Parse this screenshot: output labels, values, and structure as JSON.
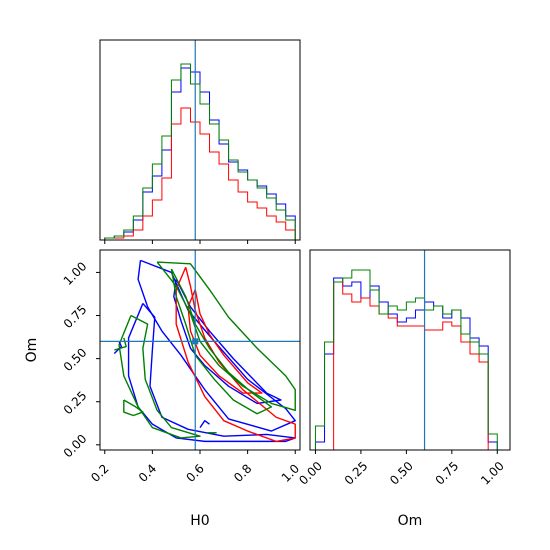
{
  "chart_data": {
    "type": "corner",
    "parameters": [
      "H0",
      "Om"
    ],
    "truth": {
      "H0": 0.58,
      "Om": 0.6
    },
    "colors": {
      "truth": "#1f77b4",
      "series": [
        "#0000ff",
        "#ff0000",
        "#008000"
      ]
    },
    "panels": [
      {
        "type": "histogram",
        "parameter": "H0",
        "xlim": [
          0.18,
          1.02
        ],
        "ylim": [
          0,
          1.0
        ],
        "series": [
          {
            "color": "#0000ff",
            "bin_edges": [
              0.2,
              0.24,
              0.28,
              0.32,
              0.36,
              0.4,
              0.44,
              0.48,
              0.52,
              0.56,
              0.6,
              0.64,
              0.68,
              0.72,
              0.76,
              0.8,
              0.84,
              0.88,
              0.92,
              0.96,
              1.0
            ],
            "values": [
              0.01,
              0.02,
              0.04,
              0.1,
              0.24,
              0.32,
              0.45,
              0.74,
              0.86,
              0.84,
              0.74,
              0.6,
              0.48,
              0.39,
              0.35,
              0.3,
              0.27,
              0.23,
              0.18,
              0.12
            ]
          },
          {
            "color": "#ff0000",
            "bin_edges": [
              0.2,
              0.24,
              0.28,
              0.32,
              0.36,
              0.4,
              0.44,
              0.48,
              0.52,
              0.56,
              0.6,
              0.64,
              0.68,
              0.72,
              0.76,
              0.8,
              0.84,
              0.88,
              0.92,
              0.96,
              1.0
            ],
            "values": [
              0.01,
              0.01,
              0.02,
              0.05,
              0.12,
              0.2,
              0.31,
              0.58,
              0.66,
              0.59,
              0.53,
              0.44,
              0.38,
              0.3,
              0.24,
              0.19,
              0.16,
              0.12,
              0.09,
              0.05
            ]
          },
          {
            "color": "#008000",
            "bin_edges": [
              0.2,
              0.24,
              0.28,
              0.32,
              0.36,
              0.4,
              0.44,
              0.48,
              0.52,
              0.56,
              0.6,
              0.64,
              0.68,
              0.72,
              0.76,
              0.8,
              0.84,
              0.88,
              0.92,
              0.96,
              1.0
            ],
            "values": [
              0.01,
              0.02,
              0.05,
              0.12,
              0.26,
              0.38,
              0.52,
              0.8,
              0.88,
              0.78,
              0.68,
              0.58,
              0.5,
              0.4,
              0.34,
              0.3,
              0.26,
              0.21,
              0.15,
              0.1
            ]
          }
        ]
      },
      {
        "type": "contour",
        "xparam": "H0",
        "yparam": "Om",
        "xlim": [
          0.18,
          1.02
        ],
        "ylim": [
          -0.03,
          1.13
        ],
        "xticks": [
          "0.2",
          "0.4",
          "0.6",
          "0.8",
          "1.0"
        ],
        "yticks": [
          "0.00",
          "0.25",
          "0.50",
          "0.75",
          "1.00"
        ],
        "contours": [
          {
            "color": "#0000ff",
            "points": [
              [
                0.35,
                1.07
              ],
              [
                0.48,
                1.0
              ],
              [
                0.55,
                0.78
              ],
              [
                0.66,
                0.6
              ],
              [
                0.8,
                0.38
              ],
              [
                0.96,
                0.21
              ],
              [
                1.0,
                0.14
              ],
              [
                0.9,
                0.08
              ],
              [
                0.72,
                0.15
              ],
              [
                0.62,
                0.32
              ],
              [
                0.52,
                0.52
              ],
              [
                0.44,
                0.66
              ],
              [
                0.38,
                0.8
              ],
              [
                0.34,
                0.96
              ],
              [
                0.35,
                1.07
              ]
            ]
          },
          {
            "color": "#0000ff",
            "points": [
              [
                0.5,
                0.96
              ],
              [
                0.56,
                0.8
              ],
              [
                0.64,
                0.66
              ],
              [
                0.74,
                0.5
              ],
              [
                0.88,
                0.3
              ],
              [
                0.94,
                0.26
              ],
              [
                0.84,
                0.24
              ],
              [
                0.72,
                0.34
              ],
              [
                0.62,
                0.46
              ],
              [
                0.56,
                0.56
              ],
              [
                0.52,
                0.72
              ],
              [
                0.49,
                0.86
              ],
              [
                0.5,
                0.96
              ]
            ]
          },
          {
            "color": "#0000ff",
            "points": [
              [
                0.36,
                0.82
              ],
              [
                0.3,
                0.62
              ],
              [
                0.3,
                0.4
              ],
              [
                0.34,
                0.22
              ],
              [
                0.4,
                0.12
              ],
              [
                0.5,
                0.04
              ],
              [
                0.62,
                0.02
              ],
              [
                0.78,
                0.02
              ],
              [
                0.96,
                0.02
              ],
              [
                1.0,
                0.04
              ],
              [
                0.88,
                0.06
              ],
              [
                0.7,
                0.05
              ],
              [
                0.55,
                0.09
              ],
              [
                0.44,
                0.16
              ],
              [
                0.39,
                0.34
              ],
              [
                0.4,
                0.55
              ],
              [
                0.41,
                0.74
              ],
              [
                0.36,
                0.82
              ]
            ]
          },
          {
            "color": "#ff0000",
            "points": [
              [
                0.54,
                1.03
              ],
              [
                0.56,
                0.92
              ],
              [
                0.58,
                0.78
              ],
              [
                0.62,
                0.62
              ],
              [
                0.68,
                0.48
              ],
              [
                0.78,
                0.32
              ],
              [
                0.92,
                0.16
              ],
              [
                1.0,
                0.12
              ],
              [
                1.0,
                0.04
              ],
              [
                0.92,
                0.02
              ],
              [
                0.8,
                0.08
              ],
              [
                0.7,
                0.14
              ],
              [
                0.62,
                0.28
              ],
              [
                0.55,
                0.48
              ],
              [
                0.5,
                0.7
              ],
              [
                0.5,
                0.9
              ],
              [
                0.54,
                1.03
              ]
            ]
          },
          {
            "color": "#ff0000",
            "points": [
              [
                0.58,
                0.9
              ],
              [
                0.6,
                0.76
              ],
              [
                0.64,
                0.64
              ],
              [
                0.7,
                0.52
              ],
              [
                0.8,
                0.36
              ],
              [
                0.86,
                0.3
              ],
              [
                0.78,
                0.3
              ],
              [
                0.68,
                0.4
              ],
              [
                0.6,
                0.52
              ],
              [
                0.56,
                0.66
              ],
              [
                0.55,
                0.8
              ],
              [
                0.58,
                0.9
              ]
            ]
          },
          {
            "color": "#008000",
            "points": [
              [
                0.42,
                1.06
              ],
              [
                0.56,
                1.05
              ],
              [
                0.64,
                0.9
              ],
              [
                0.72,
                0.74
              ],
              [
                0.84,
                0.56
              ],
              [
                0.96,
                0.4
              ],
              [
                1.0,
                0.32
              ],
              [
                1.0,
                0.2
              ],
              [
                0.9,
                0.24
              ],
              [
                0.78,
                0.34
              ],
              [
                0.68,
                0.46
              ],
              [
                0.6,
                0.6
              ],
              [
                0.56,
                0.76
              ],
              [
                0.5,
                0.92
              ],
              [
                0.42,
                1.06
              ]
            ]
          },
          {
            "color": "#008000",
            "points": [
              [
                0.31,
                0.75
              ],
              [
                0.26,
                0.58
              ],
              [
                0.28,
                0.4
              ],
              [
                0.34,
                0.22
              ],
              [
                0.4,
                0.1
              ],
              [
                0.52,
                0.04
              ],
              [
                0.6,
                0.05
              ],
              [
                0.48,
                0.1
              ],
              [
                0.42,
                0.2
              ],
              [
                0.37,
                0.38
              ],
              [
                0.36,
                0.56
              ],
              [
                0.38,
                0.7
              ],
              [
                0.31,
                0.75
              ]
            ]
          },
          {
            "color": "#008000",
            "points": [
              [
                0.48,
                1.02
              ],
              [
                0.54,
                0.86
              ],
              [
                0.58,
                0.7
              ],
              [
                0.64,
                0.56
              ],
              [
                0.72,
                0.42
              ],
              [
                0.82,
                0.3
              ],
              [
                0.9,
                0.22
              ],
              [
                0.84,
                0.18
              ],
              [
                0.74,
                0.26
              ],
              [
                0.66,
                0.38
              ],
              [
                0.58,
                0.52
              ],
              [
                0.54,
                0.7
              ],
              [
                0.5,
                0.86
              ],
              [
                0.48,
                1.02
              ]
            ]
          },
          {
            "color": "#0000ff",
            "points": [
              [
                0.24,
                0.53
              ],
              [
                0.27,
                0.57
              ],
              [
                0.26,
                0.6
              ]
            ]
          },
          {
            "color": "#0000ff",
            "points": [
              [
                0.6,
                0.1
              ],
              [
                0.62,
                0.14
              ],
              [
                0.64,
                0.12
              ]
            ]
          },
          {
            "color": "#008000",
            "points": [
              [
                0.24,
                0.55
              ],
              [
                0.29,
                0.57
              ],
              [
                0.28,
                0.62
              ]
            ]
          },
          {
            "color": "#008000",
            "points": [
              [
                0.28,
                0.26
              ],
              [
                0.33,
                0.22
              ],
              [
                0.36,
                0.19
              ],
              [
                0.32,
                0.17
              ],
              [
                0.28,
                0.19
              ],
              [
                0.28,
                0.26
              ]
            ]
          },
          {
            "color": "#008000",
            "points": [
              [
                0.63,
                0.07
              ],
              [
                0.67,
                0.07
              ]
            ]
          }
        ]
      },
      {
        "type": "histogram",
        "parameter": "Om",
        "xlim": [
          -0.03,
          1.07
        ],
        "ylim": [
          0,
          1.0
        ],
        "xticks": [
          "0.00",
          "0.25",
          "0.50",
          "0.75",
          "1.00"
        ],
        "series": [
          {
            "color": "#0000ff",
            "bin_edges": [
              0.0,
              0.05,
              0.1,
              0.15,
              0.2,
              0.25,
              0.3,
              0.35,
              0.4,
              0.45,
              0.5,
              0.55,
              0.6,
              0.65,
              0.7,
              0.75,
              0.8,
              0.85,
              0.9,
              0.95,
              1.0
            ],
            "values": [
              0.04,
              0.48,
              0.86,
              0.82,
              0.84,
              0.76,
              0.82,
              0.74,
              0.68,
              0.64,
              0.66,
              0.7,
              0.74,
              0.72,
              0.66,
              0.7,
              0.66,
              0.56,
              0.52,
              0.04
            ]
          },
          {
            "color": "#ff0000",
            "bin_edges": [
              0.0,
              0.05,
              0.1,
              0.15,
              0.2,
              0.25,
              0.3,
              0.35,
              0.4,
              0.45,
              0.5,
              0.55,
              0.6,
              0.65,
              0.7,
              0.75,
              0.8,
              0.85,
              0.9,
              0.95,
              1.0
            ],
            "values": [
              0.0,
              0.0,
              0.84,
              0.78,
              0.74,
              0.76,
              0.72,
              0.68,
              0.66,
              0.62,
              0.62,
              0.62,
              0.6,
              0.6,
              0.64,
              0.62,
              0.54,
              0.48,
              0.44,
              0.0
            ]
          },
          {
            "color": "#008000",
            "bin_edges": [
              0.0,
              0.05,
              0.1,
              0.15,
              0.2,
              0.25,
              0.3,
              0.35,
              0.4,
              0.45,
              0.5,
              0.55,
              0.6,
              0.65,
              0.7,
              0.75,
              0.8,
              0.85,
              0.9,
              0.95,
              1.0
            ],
            "values": [
              0.12,
              0.54,
              0.84,
              0.86,
              0.9,
              0.9,
              0.8,
              0.68,
              0.72,
              0.7,
              0.74,
              0.76,
              0.7,
              0.72,
              0.68,
              0.7,
              0.58,
              0.54,
              0.48,
              0.08
            ]
          }
        ]
      }
    ],
    "xlabels": [
      "H0",
      "Om"
    ],
    "ylabel": "Om"
  }
}
